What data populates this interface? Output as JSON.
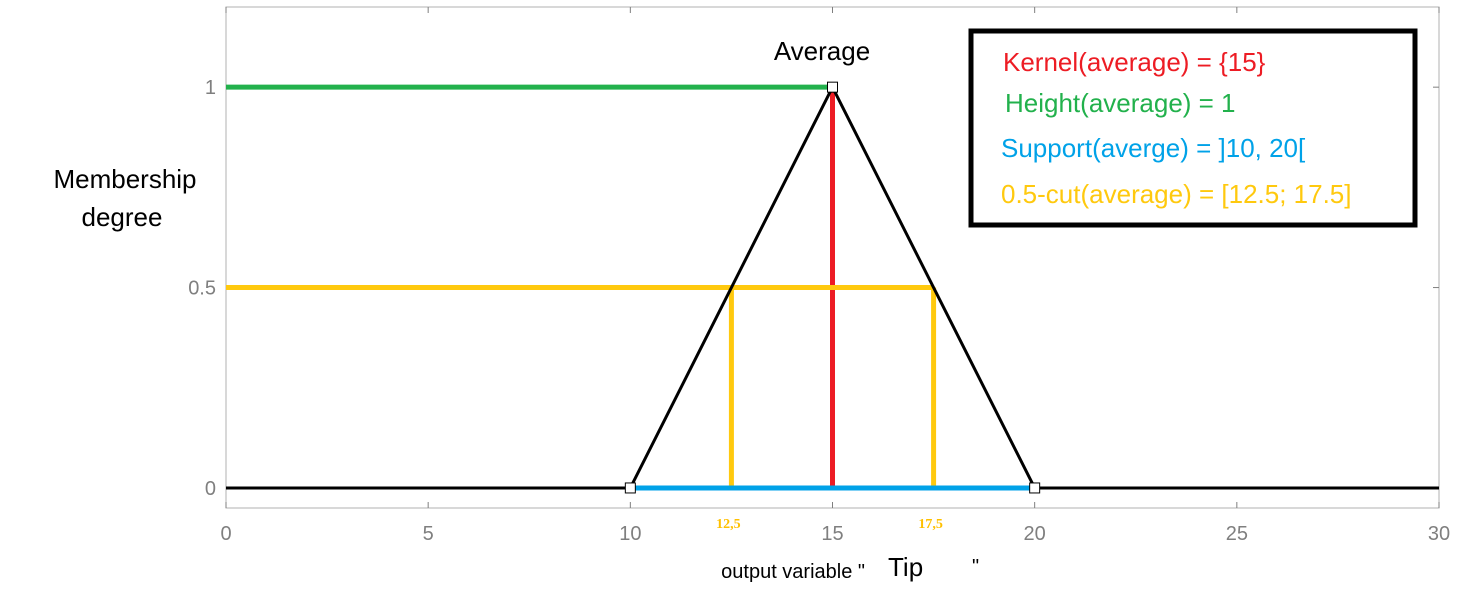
{
  "chart_data": {
    "type": "line",
    "x_axis": {
      "label_prefix": "output variable \"",
      "label_variable": "Tip",
      "label_suffix": "\"",
      "range": [
        0,
        30
      ],
      "ticks": [
        0,
        5,
        10,
        15,
        20,
        25,
        30
      ],
      "tick_labels": [
        "0",
        "5",
        "10",
        "15",
        "20",
        "25",
        "30"
      ]
    },
    "y_axis": {
      "label_lines": [
        "Membership",
        "degree"
      ],
      "range": [
        -0.05,
        1.2
      ],
      "ticks": [
        0,
        0.5,
        1
      ],
      "tick_labels": [
        "0",
        "0.5",
        "1"
      ]
    },
    "membership_function": {
      "label": "Average",
      "points": [
        [
          0,
          0
        ],
        [
          10,
          0
        ],
        [
          15,
          1
        ],
        [
          20,
          0
        ],
        [
          30,
          0
        ]
      ],
      "marker_points": [
        [
          10,
          0
        ],
        [
          15,
          1
        ],
        [
          20,
          0
        ]
      ],
      "color": "#000000"
    },
    "overlays": [
      {
        "kind": "height",
        "color": "#22b14c",
        "y": 1,
        "x_range": [
          0,
          15
        ]
      },
      {
        "kind": "kernel",
        "color": "#ed1c24",
        "x": 15,
        "y_range": [
          0,
          1
        ]
      },
      {
        "kind": "cut-horizontal",
        "color": "#ffc90e",
        "y": 0.5,
        "x_range": [
          0,
          17.5
        ]
      },
      {
        "kind": "cut-vertical",
        "color": "#ffc90e",
        "x": 12.5,
        "y_range": [
          0,
          0.5
        ]
      },
      {
        "kind": "cut-vertical",
        "color": "#ffc90e",
        "x": 17.5,
        "y_range": [
          0,
          0.5
        ]
      },
      {
        "kind": "support",
        "color": "#00a2e8",
        "y": 0,
        "x_range": [
          10,
          20
        ]
      }
    ],
    "cut_point_labels": [
      {
        "x": 12.5,
        "text": "12,5"
      },
      {
        "x": 17.5,
        "text": "17,5"
      }
    ],
    "legend_box": {
      "placement": "top-right",
      "entries": [
        {
          "text": "Kernel(average) = {15}",
          "color": "#ed1c24"
        },
        {
          "text": "Height(average) = 1",
          "color": "#22b14c"
        },
        {
          "text": "Support(averge) = ]10, 20[",
          "color": "#00a2e8"
        },
        {
          "text": "0.5-cut(average) = [12.5;  17.5]",
          "color": "#ffc90e"
        }
      ]
    },
    "grid": false
  }
}
